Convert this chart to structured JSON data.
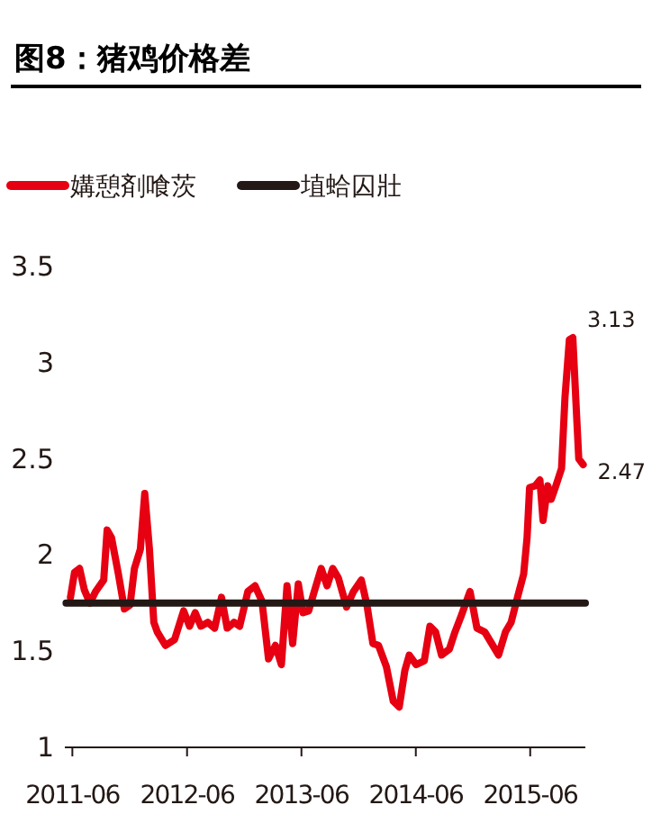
{
  "chart_data": {
    "type": "line",
    "title": "图8：猪鸡价格差",
    "legend": "top left",
    "grid": false,
    "xlim": [
      "2011-05-08",
      "2015-11-24"
    ],
    "xticks": [
      "2011-06",
      "2012-06",
      "2013-06",
      "2014-06",
      "2015-06"
    ],
    "ylim": [
      1,
      3.5
    ],
    "yticks": [
      1,
      1.5,
      2,
      2.5,
      3,
      3.5
    ],
    "series": [
      {
        "name": "媾憩剤喰茨",
        "color": "#e60012",
        "x": [
          "2011-05-26",
          "2011-06-08",
          "2011-06-24",
          "2011-07-09",
          "2011-07-27",
          "2011-08-14",
          "2011-09-09",
          "2011-09-20",
          "2011-10-04",
          "2011-10-26",
          "2011-11-14",
          "2011-12-02",
          "2011-12-16",
          "2012-01-04",
          "2012-01-18",
          "2012-02-02",
          "2012-02-16",
          "2012-02-27",
          "2012-03-24",
          "2012-04-22",
          "2012-05-21",
          "2012-06-09",
          "2012-06-27",
          "2012-07-15",
          "2012-08-06",
          "2012-08-28",
          "2012-09-19",
          "2012-10-07",
          "2012-10-29",
          "2012-11-16",
          "2012-12-12",
          "2013-01-04",
          "2013-01-26",
          "2013-02-16",
          "2013-03-10",
          "2013-03-29",
          "2013-04-16",
          "2013-05-04",
          "2013-05-22",
          "2013-06-06",
          "2013-06-24",
          "2013-07-12",
          "2013-08-03",
          "2013-08-22",
          "2013-09-09",
          "2013-09-27",
          "2013-10-23",
          "2013-11-14",
          "2013-12-09",
          "2013-12-27",
          "2014-01-15",
          "2014-02-02",
          "2014-02-27",
          "2014-03-21",
          "2014-04-09",
          "2014-04-27",
          "2014-05-11",
          "2014-06-02",
          "2014-06-28",
          "2014-07-16",
          "2014-08-03",
          "2014-08-22",
          "2014-09-16",
          "2014-10-04",
          "2014-10-23",
          "2014-11-21",
          "2014-12-13",
          "2015-01-07",
          "2015-01-29",
          "2015-02-20",
          "2015-03-14",
          "2015-04-01",
          "2015-04-23",
          "2015-05-11",
          "2015-05-22",
          "2015-05-30",
          "2015-06-17",
          "2015-07-02",
          "2015-07-12",
          "2015-07-27",
          "2015-08-07",
          "2015-08-22",
          "2015-09-09",
          "2015-09-20",
          "2015-10-04",
          "2015-10-15",
          "2015-10-26",
          "2015-11-03",
          "2015-11-17"
        ],
        "values": [
          1.78,
          1.91,
          1.93,
          1.82,
          1.75,
          1.81,
          1.87,
          2.13,
          2.09,
          1.9,
          1.72,
          1.74,
          1.93,
          2.03,
          2.32,
          2.03,
          1.65,
          1.6,
          1.53,
          1.56,
          1.71,
          1.63,
          1.7,
          1.63,
          1.65,
          1.62,
          1.78,
          1.62,
          1.65,
          1.63,
          1.81,
          1.84,
          1.76,
          1.46,
          1.53,
          1.43,
          1.84,
          1.54,
          1.85,
          1.7,
          1.71,
          1.81,
          1.93,
          1.84,
          1.93,
          1.88,
          1.73,
          1.81,
          1.87,
          1.74,
          1.54,
          1.53,
          1.42,
          1.24,
          1.21,
          1.4,
          1.48,
          1.43,
          1.45,
          1.63,
          1.6,
          1.48,
          1.51,
          1.6,
          1.68,
          1.81,
          1.62,
          1.6,
          1.54,
          1.48,
          1.6,
          1.65,
          1.79,
          1.9,
          2.09,
          2.35,
          2.36,
          2.39,
          2.18,
          2.36,
          2.29,
          2.36,
          2.45,
          2.82,
          3.12,
          3.13,
          2.76,
          2.5,
          2.47
        ]
      },
      {
        "name": "埴蛤囚壯",
        "color": "#231815",
        "x": [
          "2011-05-12",
          "2015-11-24"
        ],
        "values": [
          1.75,
          1.75
        ]
      }
    ],
    "annotations": [
      {
        "text": "3.13",
        "x": "2015-10-15",
        "y": 3.13
      },
      {
        "text": "2.47",
        "x": "2015-11-17",
        "y": 2.47
      }
    ]
  }
}
